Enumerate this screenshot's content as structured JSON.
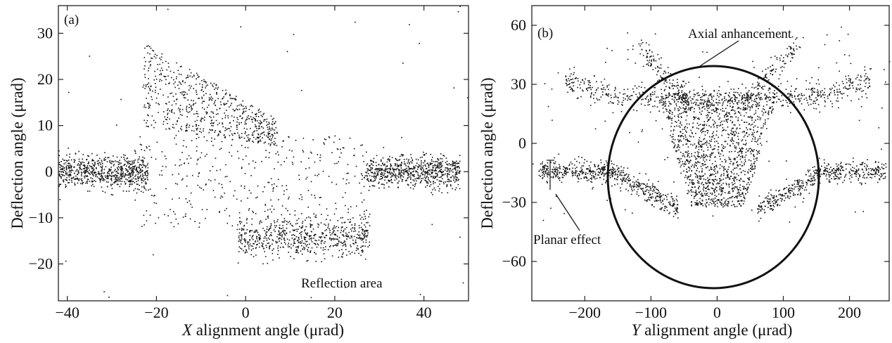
{
  "chart_data": [
    {
      "type": "scatter",
      "panel_label": "(a)",
      "xlabel_var": "X",
      "xlabel_rest": " alignment angle (μrad)",
      "ylabel": "Deflection angle (μrad)",
      "xlim": [
        -42,
        50
      ],
      "ylim": [
        -28,
        36
      ],
      "x_ticks": [
        -40,
        -20,
        0,
        20,
        40
      ],
      "y_ticks": [
        -20,
        -10,
        0,
        10,
        20,
        30
      ],
      "annotation": "Reflection area",
      "point_color": "#111111",
      "clusters": [
        {
          "x": [
            -42,
            -22
          ],
          "y": [
            -4,
            4
          ]
        },
        {
          "x": [
            -22,
            5
          ],
          "y": [
            8,
            28
          ]
        },
        {
          "x": [
            28,
            48
          ],
          "y": [
            -4,
            4
          ]
        },
        {
          "x": [
            0,
            28
          ],
          "y": [
            -18,
            -10
          ]
        }
      ]
    },
    {
      "type": "scatter",
      "panel_label": "(b)",
      "xlabel_var": "Y",
      "xlabel_rest": " alignment angle (μrad)",
      "ylabel": "Deflection angle (μrad)",
      "xlim": [
        -280,
        260
      ],
      "ylim": [
        -80,
        70
      ],
      "x_ticks": [
        -200,
        -100,
        0,
        100,
        200
      ],
      "y_ticks": [
        -60,
        -30,
        0,
        30,
        60
      ],
      "annotation_axial": "Axial anhancement",
      "annotation_planar": "Planar effect",
      "circle_center": [
        0,
        -10
      ],
      "circle_radius_x": 150,
      "circle_radius_y": 60,
      "point_color": "#111111"
    }
  ]
}
